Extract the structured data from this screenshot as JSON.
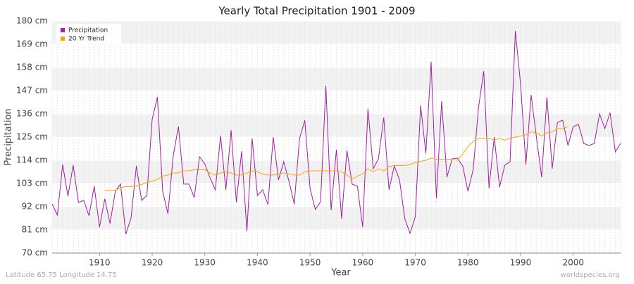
{
  "chart_data": {
    "type": "line",
    "title": "Yearly Total Precipitation 1901 - 2009",
    "x_label": "Year",
    "y_label": "Precipitation",
    "footer_left": "Latitude 65.75 Longitude 14.75",
    "footer_right": "worldspecies.org",
    "legend": "top-left",
    "grid": true,
    "x": [
      1901,
      1902,
      1903,
      1904,
      1905,
      1906,
      1907,
      1908,
      1909,
      1910,
      1911,
      1912,
      1913,
      1914,
      1915,
      1916,
      1917,
      1918,
      1919,
      1920,
      1921,
      1922,
      1923,
      1924,
      1925,
      1926,
      1927,
      1928,
      1929,
      1930,
      1931,
      1932,
      1933,
      1934,
      1935,
      1936,
      1937,
      1938,
      1939,
      1940,
      1941,
      1942,
      1943,
      1944,
      1945,
      1946,
      1947,
      1948,
      1949,
      1950,
      1951,
      1952,
      1953,
      1954,
      1955,
      1956,
      1957,
      1958,
      1959,
      1960,
      1961,
      1962,
      1963,
      1964,
      1965,
      1966,
      1967,
      1968,
      1969,
      1970,
      1971,
      1972,
      1973,
      1974,
      1975,
      1976,
      1977,
      1978,
      1979,
      1980,
      1981,
      1982,
      1983,
      1984,
      1985,
      1986,
      1987,
      1988,
      1989,
      1990,
      1991,
      1992,
      1993,
      1994,
      1995,
      1996,
      1997,
      1998,
      1999,
      2000,
      2001,
      2002,
      2003,
      2004,
      2005,
      2006,
      2007,
      2008,
      2009
    ],
    "xlim": [
      1901,
      2009
    ],
    "xticks": [
      1910,
      1920,
      1930,
      1940,
      1950,
      1960,
      1970,
      1980,
      1990,
      2000
    ],
    "ylim": [
      70,
      180
    ],
    "yticks": [
      {
        "value": 70,
        "label": "70 cm"
      },
      {
        "value": 81,
        "label": "81 cm"
      },
      {
        "value": 92,
        "label": "92 cm"
      },
      {
        "value": 103,
        "label": "103 cm"
      },
      {
        "value": 114,
        "label": "114 cm"
      },
      {
        "value": 125,
        "label": "125 cm"
      },
      {
        "value": 136,
        "label": "136 cm"
      },
      {
        "value": 147,
        "label": "147 cm"
      },
      {
        "value": 158,
        "label": "158 cm"
      },
      {
        "value": 169,
        "label": "169 cm"
      },
      {
        "value": 180,
        "label": "180 cm"
      }
    ],
    "series": [
      {
        "name": "Precipitation",
        "color": "#a020a0",
        "values": [
          93.3,
          88,
          112,
          97,
          111.7,
          94,
          95,
          87.7,
          101.7,
          82.3,
          95.7,
          84,
          99.3,
          102.7,
          79,
          86.7,
          111.3,
          95,
          97.3,
          133.3,
          144,
          99.3,
          88.7,
          116,
          130,
          102.7,
          102.7,
          96.3,
          115.7,
          112.3,
          105.7,
          100,
          125.7,
          100,
          128.3,
          94,
          118.3,
          80.3,
          124.3,
          97.3,
          100,
          93,
          125,
          104.7,
          113.3,
          104,
          93.3,
          124.3,
          133,
          100.7,
          90.7,
          94.3,
          149.3,
          90.3,
          119,
          86.3,
          118.7,
          102.7,
          101.7,
          82.3,
          138.3,
          110,
          114.7,
          134.3,
          100,
          111.3,
          104.7,
          86.3,
          79.3,
          87.3,
          140,
          117.3,
          160.7,
          96,
          142,
          106,
          114.7,
          115,
          111.3,
          99.3,
          109.7,
          139,
          156.3,
          100.7,
          125,
          101.3,
          111.7,
          113.3,
          175.3,
          150,
          112,
          145,
          125,
          106,
          144,
          110,
          132,
          133,
          121,
          130,
          131,
          122,
          121,
          122,
          136,
          129,
          136.5,
          118,
          122
        ]
      },
      {
        "name": "20 Yr Trend",
        "color": "#ffa500",
        "values": [
          null,
          null,
          null,
          null,
          null,
          null,
          null,
          null,
          null,
          null,
          99.5,
          99.8,
          99.8,
          101,
          101.5,
          101.5,
          101.8,
          102.5,
          103.5,
          104,
          105,
          106.5,
          107,
          108,
          108,
          109,
          109,
          109.5,
          109.5,
          109.5,
          108,
          107,
          108,
          108.5,
          108,
          107,
          107,
          108,
          109,
          108.5,
          107.5,
          107,
          107,
          107.5,
          108,
          107.5,
          107,
          107,
          108.5,
          109,
          109,
          109,
          109,
          109,
          109,
          108.5,
          107,
          105,
          106.5,
          107.5,
          110,
          108.5,
          110,
          109,
          111,
          111.5,
          111.5,
          111.5,
          112,
          113,
          113.5,
          114,
          115,
          114.5,
          114.5,
          114.5,
          114.5,
          114,
          117,
          120.5,
          123,
          124.5,
          124.5,
          124.5,
          123.5,
          124.5,
          123.5,
          124.5,
          125,
          125.5,
          126,
          127.5,
          127,
          125.5,
          127,
          127.5,
          129,
          129,
          130,
          null,
          null,
          null,
          null,
          null,
          null,
          null,
          null,
          null,
          null
        ]
      }
    ]
  }
}
